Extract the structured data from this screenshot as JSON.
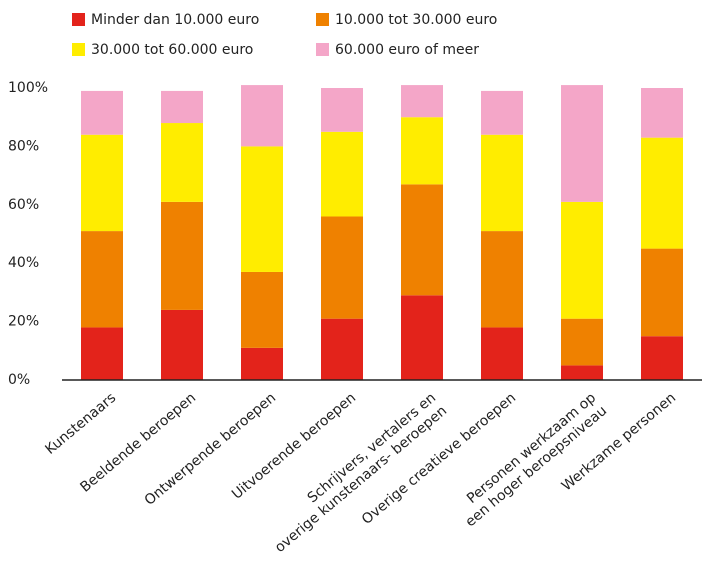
{
  "chart_data": {
    "type": "stacked_bar",
    "categories": [
      "Kunstenaars",
      "Beeldende beroepen",
      "Ontwerpende beroepen",
      "Uitvoerende beroepen",
      "Schrijvers, vertalers en\noverige kunstenaars- beroepen",
      "Overige creatieve beroepen",
      "Personen werkzaam op\neen hoger beroepsniveau",
      "Werkzame personen"
    ],
    "series": [
      {
        "name": "Minder dan 10.000 euro",
        "color": "#e3231b",
        "values": [
          18,
          24,
          11,
          21,
          29,
          18,
          5,
          15
        ]
      },
      {
        "name": "10.000 tot 30.000 euro",
        "color": "#ef8100",
        "values": [
          33,
          37,
          26,
          35,
          38,
          33,
          16,
          30
        ]
      },
      {
        "name": "30.000 tot 60.000 euro",
        "color": "#ffed00",
        "values": [
          33,
          27,
          43,
          29,
          23,
          33,
          40,
          38
        ]
      },
      {
        "name": "60.000 euro of meer",
        "color": "#f4a6c8",
        "values": [
          15,
          11,
          21,
          15,
          11,
          15,
          40,
          17
        ]
      }
    ],
    "ylim": [
      0,
      100
    ],
    "yticks": [
      {
        "value": 0,
        "label": "0%"
      },
      {
        "value": 20,
        "label": "20%"
      },
      {
        "value": 40,
        "label": "40%"
      },
      {
        "value": 60,
        "label": "60%"
      },
      {
        "value": 80,
        "label": "80%"
      },
      {
        "value": 100,
        "label": "100%"
      }
    ]
  }
}
